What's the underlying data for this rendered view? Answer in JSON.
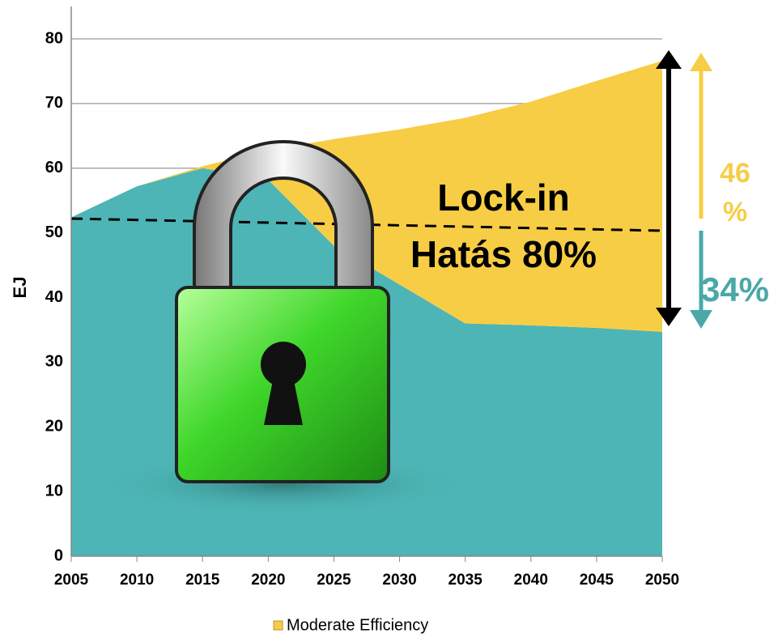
{
  "chart_data": {
    "type": "area",
    "x": [
      2005,
      2010,
      2015,
      2020,
      2025,
      2030,
      2035,
      2040,
      2045,
      2050
    ],
    "series": [
      {
        "color": "#4db5b5",
        "values": [
          52.4,
          57.2,
          60,
          58.2,
          48,
          42,
          36,
          35.7,
          35.3,
          34.7
        ]
      },
      {
        "name": "Moderate Efficiency",
        "color": "#f7cd45",
        "values": [
          0,
          0,
          0.3,
          4.6,
          16.5,
          24,
          31.8,
          34.6,
          38.2,
          41.9
        ]
      }
    ],
    "y_label": "EJ",
    "xlim": [
      2005,
      2050
    ],
    "xticks": [
      2005,
      2010,
      2015,
      2020,
      2025,
      2030,
      2035,
      2040,
      2045,
      2050
    ],
    "ylim": [
      0,
      80
    ],
    "yticks": [
      0,
      10,
      20,
      30,
      40,
      50,
      60,
      70,
      80
    ],
    "grid": true,
    "annotations": [
      "Lock-in",
      "Hatás 80%",
      "46",
      "%",
      "34%"
    ]
  }
}
